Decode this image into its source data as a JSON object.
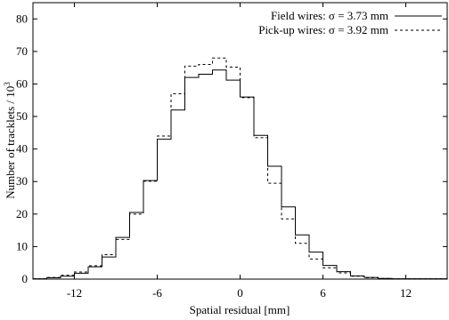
{
  "chart_data": {
    "type": "histogram",
    "title": "",
    "xlabel": "Spatial residual [mm]",
    "ylabel": "Number of tracklets / 10",
    "ylabel_superscript": "3",
    "xlim": [
      -15,
      15
    ],
    "ylim": [
      0,
      85
    ],
    "xticks": [
      -12,
      -6,
      0,
      6,
      12
    ],
    "yticks": [
      0,
      10,
      20,
      30,
      40,
      50,
      60,
      70,
      80
    ],
    "grid": false,
    "legend_position": "top-right",
    "bin_edges": [
      -15,
      -14,
      -13,
      -12,
      -11,
      -10,
      -9,
      -8,
      -7,
      -6,
      -5,
      -4,
      -3,
      -2,
      -1,
      0,
      1,
      2,
      3,
      4,
      5,
      6,
      7,
      8,
      9,
      10,
      11,
      12,
      13,
      14,
      15
    ],
    "series": [
      {
        "name": "Field wires: σ = 3.73 mm",
        "line_style": "solid",
        "values": [
          0.1,
          0.4,
          0.9,
          1.8,
          3.8,
          6.8,
          12.8,
          20.5,
          30.3,
          43.0,
          52.0,
          62.0,
          63.0,
          64.3,
          61.2,
          56.0,
          44.2,
          34.7,
          22.2,
          13.6,
          8.3,
          4.2,
          2.3,
          1.0,
          0.5,
          0.2,
          0.1,
          0.1,
          0.1,
          0.1
        ]
      },
      {
        "name": "Pick-up wires: σ = 3.92 mm",
        "line_style": "dashed",
        "values": [
          0.1,
          0.5,
          1.2,
          2.2,
          4.1,
          7.5,
          12.2,
          20.0,
          30.1,
          44.0,
          57.0,
          65.5,
          66.0,
          68.0,
          65.2,
          55.8,
          43.5,
          29.5,
          18.5,
          11.0,
          6.2,
          3.5,
          1.9,
          0.9,
          0.4,
          0.2,
          0.1,
          0.1,
          0.1,
          0.1
        ]
      }
    ]
  }
}
